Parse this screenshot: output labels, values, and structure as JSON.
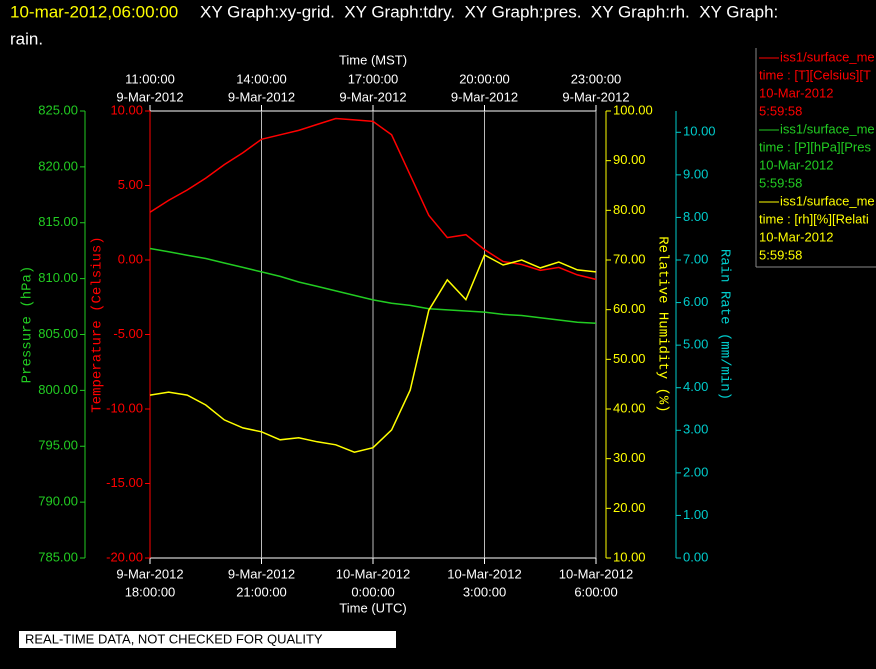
{
  "chart_data": {
    "type": "line",
    "title": "10-mar-2012,06:00:00",
    "subtitle": [
      "XY Graph:xy-grid.  XY Graph:tdry.  XY Graph:pres.  XY Graph:rh.  XY Graph:",
      "rain."
    ],
    "x_label": "Time (UTC)",
    "x2_label": "Time (MST)",
    "xlim": [
      "2012-03-09T18:00:00Z",
      "2012-03-10T06:00:00Z"
    ],
    "xticks": [
      {
        "value": "2012-03-09T18:00:00Z",
        "label": [
          "9-Mar-2012",
          "18:00:00"
        ]
      },
      {
        "value": "2012-03-09T21:00:00Z",
        "label": [
          "9-Mar-2012",
          "21:00:00"
        ]
      },
      {
        "value": "2012-03-10T00:00:00Z",
        "label": [
          "10-Mar-2012",
          "0:00:00"
        ]
      },
      {
        "value": "2012-03-10T03:00:00Z",
        "label": [
          "10-Mar-2012",
          "3:00:00"
        ]
      },
      {
        "value": "2012-03-10T06:00:00Z",
        "label": [
          "10-Mar-2012",
          "6:00:00"
        ]
      }
    ],
    "x2ticks": [
      {
        "value": "2012-03-09T18:00:00Z",
        "label": [
          "11:00:00",
          "9-Mar-2012"
        ]
      },
      {
        "value": "2012-03-09T21:00:00Z",
        "label": [
          "14:00:00",
          "9-Mar-2012"
        ]
      },
      {
        "value": "2012-03-10T00:00:00Z",
        "label": [
          "17:00:00",
          "9-Mar-2012"
        ]
      },
      {
        "value": "2012-03-10T03:00:00Z",
        "label": [
          "20:00:00",
          "9-Mar-2012"
        ]
      },
      {
        "value": "2012-03-10T06:00:00Z",
        "label": [
          "23:00:00",
          "9-Mar-2012"
        ]
      }
    ],
    "grid": true,
    "y_axes": [
      {
        "label": "Temperature (Celsius)",
        "color": "#ff0000",
        "ylim": [
          -20,
          10
        ],
        "yticks": [
          {
            "value": -20,
            "label": "-20.00"
          },
          {
            "value": -15,
            "label": "-15.00"
          },
          {
            "value": -10,
            "label": "-10.00"
          },
          {
            "value": -5,
            "label": "-5.00"
          },
          {
            "value": 0,
            "label": "0.00"
          },
          {
            "value": 5,
            "label": "5.00"
          },
          {
            "value": 10,
            "label": "10.00"
          }
        ]
      },
      {
        "label": "Pressure (hPa)",
        "color": "#22cc22",
        "ylim": [
          785,
          825
        ],
        "yticks": [
          {
            "value": 785,
            "label": "785.00"
          },
          {
            "value": 790,
            "label": "790.00"
          },
          {
            "value": 795,
            "label": "795.00"
          },
          {
            "value": 800,
            "label": "800.00"
          },
          {
            "value": 805,
            "label": "805.00"
          },
          {
            "value": 810,
            "label": "810.00"
          },
          {
            "value": 815,
            "label": "815.00"
          },
          {
            "value": 820,
            "label": "820.00"
          },
          {
            "value": 825,
            "label": "825.00"
          }
        ]
      },
      {
        "label": "Relative Humidity (%)",
        "color": "#ffff00",
        "ylim": [
          10,
          100
        ],
        "yticks": [
          {
            "value": 10,
            "label": "10.00"
          },
          {
            "value": 20,
            "label": "20.00"
          },
          {
            "value": 30,
            "label": "30.00"
          },
          {
            "value": 40,
            "label": "40.00"
          },
          {
            "value": 50,
            "label": "50.00"
          },
          {
            "value": 60,
            "label": "60.00"
          },
          {
            "value": 70,
            "label": "70.00"
          },
          {
            "value": 80,
            "label": "80.00"
          },
          {
            "value": 90,
            "label": "90.00"
          },
          {
            "value": 100,
            "label": "100.00"
          }
        ]
      },
      {
        "label": "Rain Rate (mm/min)",
        "color": "#00cccc",
        "ylim": [
          0,
          10.5
        ],
        "yticks": [
          {
            "value": 0,
            "label": "0.00"
          },
          {
            "value": 1,
            "label": "1.00"
          },
          {
            "value": 2,
            "label": "2.00"
          },
          {
            "value": 3,
            "label": "3.00"
          },
          {
            "value": 4,
            "label": "4.00"
          },
          {
            "value": 5,
            "label": "5.00"
          },
          {
            "value": 6,
            "label": "6.00"
          },
          {
            "value": 7,
            "label": "7.00"
          },
          {
            "value": 8,
            "label": "8.00"
          },
          {
            "value": 9,
            "label": "9.00"
          },
          {
            "value": 10,
            "label": "10.00"
          }
        ]
      }
    ],
    "x": [
      "2012-03-09T18:00:00Z",
      "2012-03-09T18:30:00Z",
      "2012-03-09T19:00:00Z",
      "2012-03-09T19:30:00Z",
      "2012-03-09T20:00:00Z",
      "2012-03-09T20:30:00Z",
      "2012-03-09T21:00:00Z",
      "2012-03-09T21:30:00Z",
      "2012-03-09T22:00:00Z",
      "2012-03-09T22:30:00Z",
      "2012-03-09T23:00:00Z",
      "2012-03-09T23:30:00Z",
      "2012-03-10T00:00:00Z",
      "2012-03-10T00:30:00Z",
      "2012-03-10T01:00:00Z",
      "2012-03-10T01:30:00Z",
      "2012-03-10T02:00:00Z",
      "2012-03-10T02:30:00Z",
      "2012-03-10T03:00:00Z",
      "2012-03-10T03:30:00Z",
      "2012-03-10T04:00:00Z",
      "2012-03-10T04:30:00Z",
      "2012-03-10T05:00:00Z",
      "2012-03-10T05:30:00Z",
      "2012-03-10T06:00:00Z"
    ],
    "series": [
      {
        "name": "iss1/surface_me",
        "legend_lines": [
          "time : [T][Celsius][T",
          "10-Mar-2012",
          "5:59:58"
        ],
        "color": "#ff0000",
        "axis": 0,
        "values": [
          3.2,
          4.0,
          4.7,
          5.5,
          6.4,
          7.2,
          8.1,
          8.4,
          8.7,
          9.1,
          9.5,
          9.4,
          9.3,
          8.4,
          5.7,
          3.0,
          1.5,
          1.7,
          0.7,
          -0.1,
          -0.3,
          -0.7,
          -0.5,
          -1.0,
          -1.3
        ]
      },
      {
        "name": "iss1/surface_me",
        "legend_lines": [
          "time : [P][hPa][Pres",
          "10-Mar-2012",
          "5:59:58"
        ],
        "color": "#22cc22",
        "axis": 1,
        "values": [
          812.7,
          812.4,
          812.1,
          811.8,
          811.4,
          811.0,
          810.6,
          810.2,
          809.7,
          809.3,
          808.9,
          808.5,
          808.1,
          807.8,
          807.6,
          807.3,
          807.2,
          807.1,
          807.0,
          806.8,
          806.7,
          806.5,
          806.3,
          806.1,
          806.0
        ]
      },
      {
        "name": "iss1/surface_me",
        "legend_lines": [
          "time : [rh][%][Relati",
          "10-Mar-2012",
          "5:59:58"
        ],
        "color": "#ffff00",
        "axis": 2,
        "values": [
          42.8,
          43.4,
          42.8,
          40.8,
          37.8,
          36.2,
          35.4,
          33.8,
          34.2,
          33.4,
          32.8,
          31.3,
          32.2,
          35.8,
          43.8,
          59.9,
          66.0,
          62.0,
          71.0,
          69.0,
          70.0,
          68.4,
          69.6,
          68.0,
          67.6
        ]
      }
    ],
    "footnote": "REAL-TIME DATA, NOT CHECKED FOR QUALITY"
  }
}
